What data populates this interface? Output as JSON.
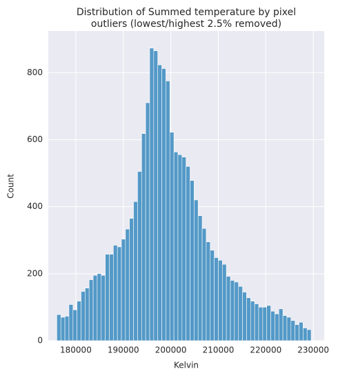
{
  "chart_data": {
    "type": "histogram",
    "title": [
      "Distribution of Summed temperature by pixel",
      "outliers (lowest/highest 2.5% removed)"
    ],
    "x_label": "Kelvin",
    "y_label": "Count",
    "bins": [
      176000,
      176850,
      177700,
      178550,
      179400,
      180250,
      181100,
      181950,
      182800,
      183650,
      184500,
      185350,
      186200,
      187050,
      187900,
      188750,
      189600,
      190450,
      191300,
      192150,
      193000,
      193850,
      194700,
      195550,
      196400,
      197250,
      198100,
      198950,
      199800,
      200650,
      201500,
      202350,
      203200,
      204050,
      204900,
      205750,
      206600,
      207450,
      208300,
      209150,
      210000,
      210850,
      211700,
      212550,
      213400,
      214250,
      215100,
      215950,
      216800,
      217650,
      218500,
      219350,
      220200,
      221050,
      221900,
      222750,
      223600,
      224450,
      225300,
      226150,
      227000,
      227850,
      228700,
      229550
    ],
    "values": [
      78,
      70,
      73,
      108,
      92,
      118,
      147,
      157,
      182,
      195,
      200,
      195,
      258,
      258,
      285,
      280,
      303,
      333,
      365,
      415,
      505,
      618,
      710,
      873,
      865,
      823,
      812,
      775,
      622,
      563,
      555,
      548,
      520,
      478,
      420,
      373,
      335,
      295,
      270,
      248,
      240,
      228,
      192,
      180,
      175,
      162,
      145,
      128,
      118,
      110,
      100,
      100,
      105,
      88,
      80,
      95,
      75,
      70,
      60,
      48,
      55,
      38,
      33
    ],
    "color": "#5499c7",
    "xlim": [
      174200,
      232300
    ],
    "ylim": [
      0,
      924
    ],
    "xticks": [
      180000,
      190000,
      200000,
      210000,
      220000,
      230000
    ],
    "yticks": [
      0,
      200,
      400,
      600,
      800
    ],
    "grid": true
  }
}
